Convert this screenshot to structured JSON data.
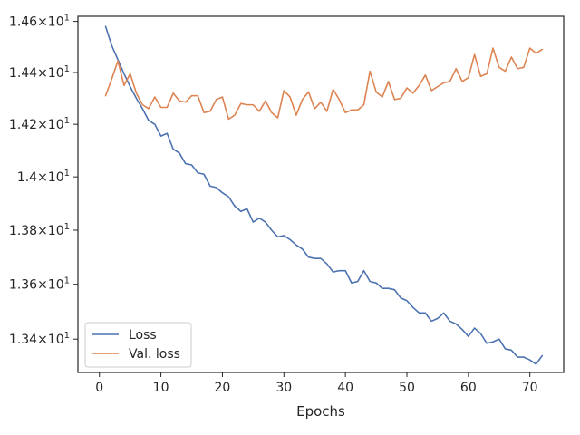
{
  "chart_data": {
    "type": "line",
    "title": "",
    "xlabel": "Epochs",
    "ylabel": "",
    "xlim": [
      -3.5,
      75.5
    ],
    "ylim": [
      13.28,
      14.62
    ],
    "y_scale": "log",
    "grid": false,
    "legend_position": "lower-left",
    "x_ticks": [
      0,
      10,
      20,
      30,
      40,
      50,
      60,
      70
    ],
    "x_tick_labels": [
      "0",
      "10",
      "20",
      "30",
      "40",
      "50",
      "60",
      "70"
    ],
    "y_ticks": [
      {
        "value": 13.4,
        "base": "1.34",
        "exp": "1"
      },
      {
        "value": 13.6,
        "base": "1.36",
        "exp": "1"
      },
      {
        "value": 13.8,
        "base": "1.38",
        "exp": "1"
      },
      {
        "value": 14.0,
        "base": "1.4",
        "exp": "1"
      },
      {
        "value": 14.2,
        "base": "1.42",
        "exp": "1"
      },
      {
        "value": 14.4,
        "base": "1.44",
        "exp": "1"
      },
      {
        "value": 14.6,
        "base": "1.46",
        "exp": "1"
      }
    ],
    "x": [
      1,
      2,
      3,
      4,
      5,
      6,
      7,
      8,
      9,
      10,
      11,
      12,
      13,
      14,
      15,
      16,
      17,
      18,
      19,
      20,
      21,
      22,
      23,
      24,
      25,
      26,
      27,
      28,
      29,
      30,
      31,
      32,
      33,
      34,
      35,
      36,
      37,
      38,
      39,
      40,
      41,
      42,
      43,
      44,
      45,
      46,
      47,
      48,
      49,
      50,
      51,
      52,
      53,
      54,
      55,
      56,
      57,
      58,
      59,
      60,
      61,
      62,
      63,
      64,
      65,
      66,
      67,
      68,
      69,
      70,
      71,
      72
    ],
    "series": [
      {
        "name": "Loss",
        "color": "#4c72b0",
        "values": [
          14.58,
          14.505,
          14.45,
          14.395,
          14.345,
          14.3,
          14.26,
          14.215,
          14.2,
          14.155,
          14.165,
          14.105,
          14.09,
          14.05,
          14.045,
          14.015,
          14.01,
          13.965,
          13.96,
          13.94,
          13.925,
          13.89,
          13.87,
          13.88,
          13.83,
          13.845,
          13.83,
          13.8,
          13.775,
          13.78,
          13.765,
          13.745,
          13.73,
          13.7,
          13.695,
          13.695,
          13.675,
          13.645,
          13.65,
          13.65,
          13.605,
          13.61,
          13.65,
          13.61,
          13.605,
          13.585,
          13.585,
          13.58,
          13.55,
          13.54,
          13.515,
          13.495,
          13.495,
          13.465,
          13.475,
          13.495,
          13.465,
          13.455,
          13.435,
          13.41,
          13.44,
          13.42,
          13.385,
          13.39,
          13.4,
          13.365,
          13.36,
          13.335,
          13.335,
          13.325,
          13.31,
          13.34
        ]
      },
      {
        "name": "Val. loss",
        "color": "#dd8452",
        "values": [
          14.31,
          14.375,
          14.445,
          14.35,
          14.395,
          14.32,
          14.275,
          14.26,
          14.305,
          14.265,
          14.265,
          14.32,
          14.29,
          14.285,
          14.31,
          14.31,
          14.245,
          14.25,
          14.295,
          14.305,
          14.22,
          14.235,
          14.28,
          14.275,
          14.275,
          14.25,
          14.29,
          14.245,
          14.225,
          14.33,
          14.305,
          14.235,
          14.295,
          14.325,
          14.26,
          14.285,
          14.25,
          14.335,
          14.295,
          14.245,
          14.255,
          14.255,
          14.275,
          14.405,
          14.325,
          14.305,
          14.365,
          14.295,
          14.3,
          14.34,
          14.32,
          14.35,
          14.39,
          14.33,
          14.345,
          14.36,
          14.365,
          14.415,
          14.365,
          14.38,
          14.47,
          14.385,
          14.395,
          14.495,
          14.42,
          14.405,
          14.46,
          14.415,
          14.42,
          14.495,
          14.475,
          14.49
        ]
      }
    ]
  }
}
